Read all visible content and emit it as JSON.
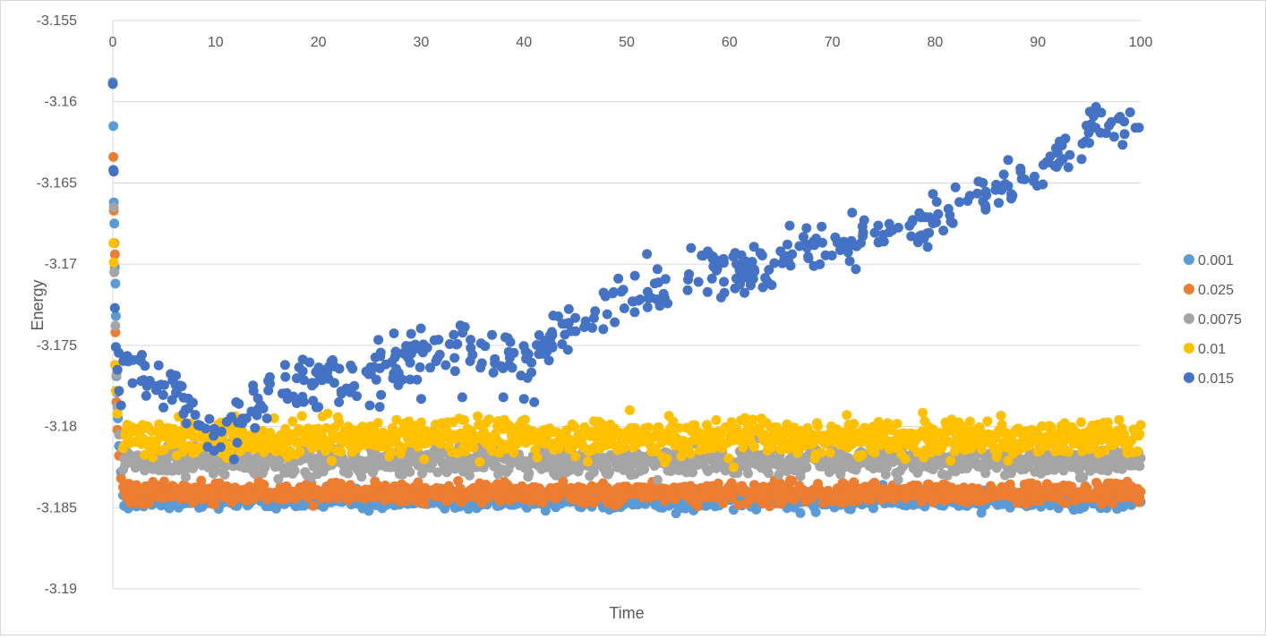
{
  "chart_data": {
    "type": "scatter",
    "title": "",
    "xlabel": "Time",
    "ylabel": "Energy",
    "xlim": [
      0,
      100
    ],
    "ylim": [
      -3.19,
      -3.155
    ],
    "x_ticks": [
      0,
      10,
      20,
      30,
      40,
      50,
      60,
      70,
      80,
      90,
      100
    ],
    "y_ticks": [
      -3.155,
      -3.16,
      -3.165,
      -3.17,
      -3.175,
      -3.18,
      -3.185,
      -3.19
    ],
    "y_tick_labels": [
      "-3.155",
      "-3.16",
      "-3.165",
      "-3.17",
      "-3.175",
      "-3.18",
      "-3.185",
      "-3.19"
    ],
    "x_axis_position": "top",
    "grid": "horizontal",
    "legend_position": "right",
    "series": [
      {
        "name": "0.001",
        "color": "#5b9bd5",
        "initial": [
          [
            0,
            -3.1588
          ],
          [
            0.05,
            -3.1615
          ],
          [
            0.1,
            -3.1662
          ],
          [
            0.15,
            -3.1675
          ],
          [
            0.2,
            -3.1702
          ],
          [
            0.25,
            -3.1712
          ],
          [
            0.3,
            -3.1732
          ],
          [
            0.35,
            -3.1769
          ],
          [
            0.4,
            -3.1779
          ],
          [
            0.5,
            -3.1795
          ],
          [
            0.6,
            -3.1812
          ],
          [
            0.8,
            -3.1828
          ]
        ],
        "steady": {
          "start": 1,
          "end": 100,
          "step": 0.1,
          "mean": -3.1845,
          "spread": 0.0004
        }
      },
      {
        "name": "0.025",
        "color": "#ed7d31",
        "initial": [
          [
            0.05,
            -3.1634
          ],
          [
            0.1,
            -3.1667
          ],
          [
            0.15,
            -3.1687
          ],
          [
            0.2,
            -3.1694
          ],
          [
            0.25,
            -3.1742
          ],
          [
            0.3,
            -3.1763
          ],
          [
            0.35,
            -3.1785
          ],
          [
            0.45,
            -3.1802
          ],
          [
            0.6,
            -3.1818
          ],
          [
            0.8,
            -3.1832
          ]
        ],
        "steady": {
          "start": 1,
          "end": 100,
          "step": 0.1,
          "mean": -3.1841,
          "spread": 0.00045
        }
      },
      {
        "name": "0.0075",
        "color": "#a5a5a5",
        "initial": [
          [
            0.1,
            -3.1665
          ],
          [
            0.15,
            -3.1705
          ],
          [
            0.25,
            -3.1738
          ],
          [
            0.35,
            -3.1768
          ],
          [
            0.45,
            -3.1788
          ],
          [
            0.6,
            -3.1805
          ]
        ],
        "steady": {
          "start": 1,
          "end": 100,
          "step": 0.1,
          "mean": -3.1821,
          "spread": 0.0006
        }
      },
      {
        "name": "0.01",
        "color": "#ffc000",
        "initial": [
          [
            0.05,
            -3.1687
          ],
          [
            0.1,
            -3.1699
          ],
          [
            0.2,
            -3.1762
          ],
          [
            0.3,
            -3.1778
          ],
          [
            0.45,
            -3.1792
          ]
        ],
        "steady": {
          "start": 1,
          "end": 100,
          "step": 0.1,
          "mean": -3.1807,
          "spread": 0.0008
        }
      },
      {
        "name": "0.015",
        "color": "#4472c4",
        "initial": [
          [
            0,
            -3.1589
          ],
          [
            0.05,
            -3.1642
          ],
          [
            0.1,
            -3.1643
          ],
          [
            0.2,
            -3.1727
          ],
          [
            0.3,
            -3.1751
          ],
          [
            0.45,
            -3.1765
          ],
          [
            0.6,
            -3.1778
          ],
          [
            0.8,
            -3.1787
          ]
        ],
        "trend": [
          [
            0,
            -3.1755
          ],
          [
            5,
            -3.1775
          ],
          [
            10,
            -3.1805
          ],
          [
            15,
            -3.178
          ],
          [
            20,
            -3.1772
          ],
          [
            25,
            -3.1768
          ],
          [
            30,
            -3.1755
          ],
          [
            35,
            -3.1748
          ],
          [
            40,
            -3.176
          ],
          [
            45,
            -3.1738
          ],
          [
            50,
            -3.172
          ],
          [
            55,
            -3.1712
          ],
          [
            60,
            -3.1705
          ],
          [
            65,
            -3.1697
          ],
          [
            70,
            -3.1687
          ],
          [
            75,
            -3.1682
          ],
          [
            80,
            -3.1673
          ],
          [
            85,
            -3.166
          ],
          [
            90,
            -3.1645
          ],
          [
            95,
            -3.1617
          ],
          [
            100,
            -3.1612
          ]
        ],
        "count": 480,
        "spread": 0.0011
      },
      {
        "name": "0.015",
        "legend": false,
        "color": "#4472c4",
        "points": [
          [
            12,
            -3.1785
          ],
          [
            13,
            -3.1795
          ],
          [
            15,
            -3.1795
          ],
          [
            17,
            -3.1783
          ],
          [
            20,
            -3.1788
          ],
          [
            22,
            -3.1785
          ],
          [
            25,
            -3.1787
          ],
          [
            30,
            -3.1783
          ],
          [
            34,
            -3.1782
          ],
          [
            38,
            -3.1782
          ],
          [
            40,
            -3.1783
          ],
          [
            41,
            -3.1785
          ]
        ]
      }
    ],
    "legend": [
      "0.001",
      "0.025",
      "0.0075",
      "0.01",
      "0.015"
    ]
  }
}
